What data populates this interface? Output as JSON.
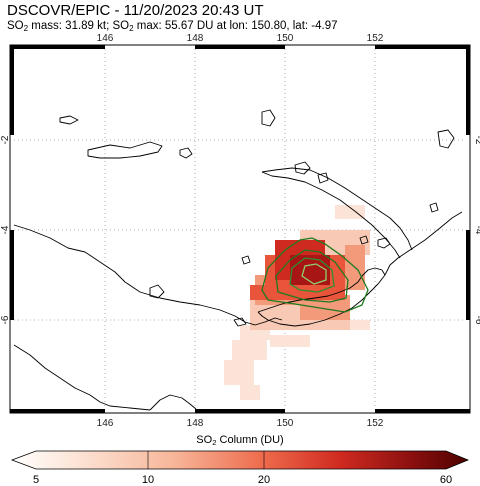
{
  "title": "DSCOVR/EPIC - 11/20/2023 20:43 UT",
  "subtitle": {
    "mass_prefix": "SO",
    "mass_sub": "2",
    "mass_text": " mass: 31.89 kt; SO",
    "max_sub": "2",
    "max_text": " max: 55.67 DU at lon: 150.80, lat: -4.97"
  },
  "map": {
    "lon_ticks": [
      "146",
      "148",
      "150",
      "152"
    ],
    "lat_ticks": [
      "-2",
      "-4",
      "-6"
    ],
    "coastline_color": "#000000",
    "contour_colors": [
      "#1f7a1f",
      "#3fae3f",
      "#8fd16a"
    ]
  },
  "colorbar": {
    "title_prefix": "SO",
    "title_sub": "2",
    "title_text": " Column (DU)",
    "tick_labels": [
      "5",
      "10",
      "20",
      "60"
    ],
    "colors": [
      "#ffffff",
      "#fde8dc",
      "#f7b79b",
      "#ef6b4d",
      "#cf2a20",
      "#8a0f0f",
      "#4d0000"
    ]
  }
}
